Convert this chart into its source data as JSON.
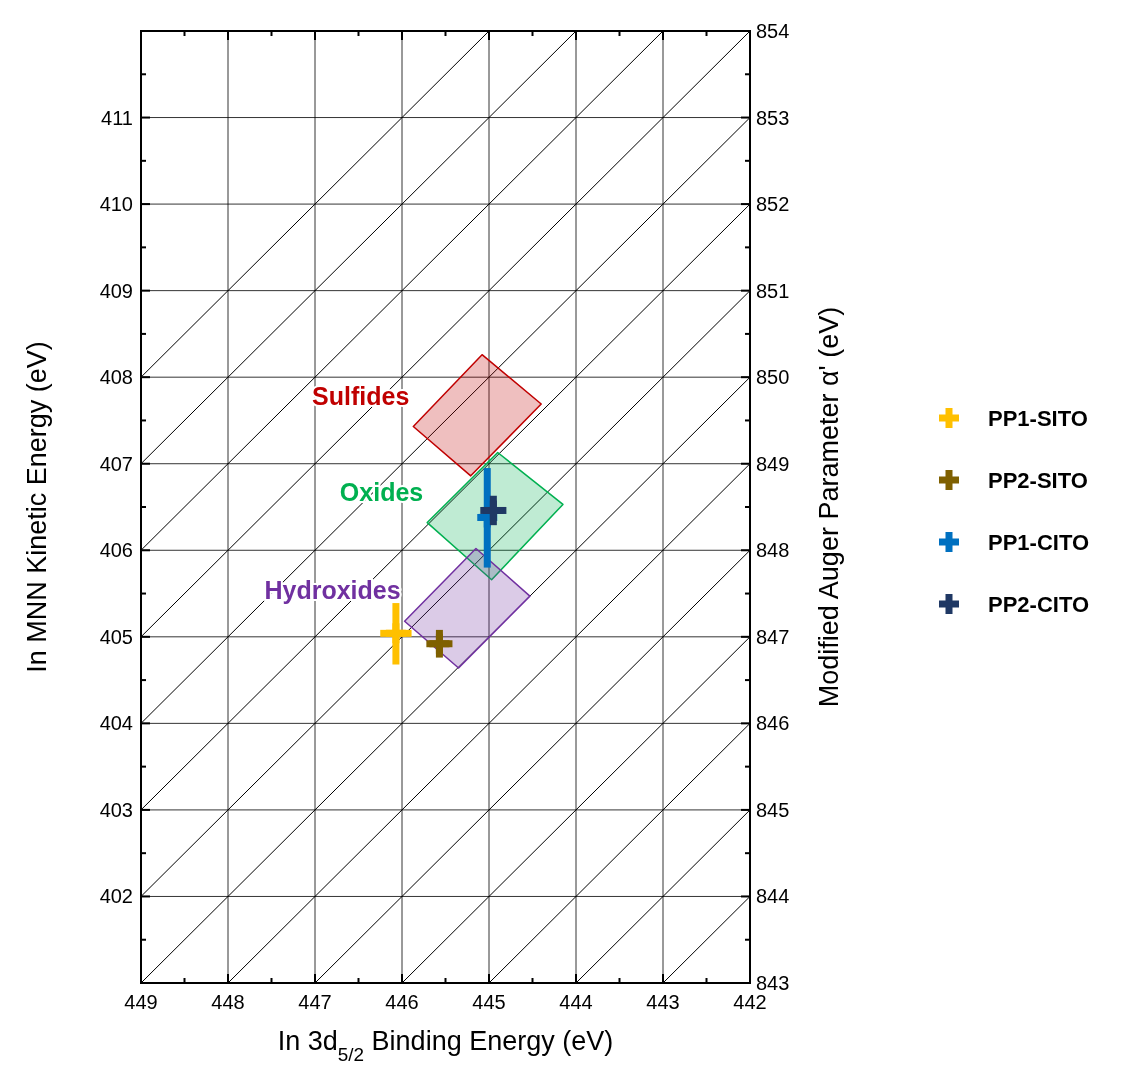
{
  "chart_data": {
    "type": "scatter",
    "xlabel": "In 3d$_{5/2}$ Binding Energy (eV)",
    "ylabel": "In MNN Kinetic Energy (eV)",
    "y2label": "Modified Auger Parameter α' (eV)",
    "xlim": [
      449,
      442
    ],
    "ylim": [
      401,
      412
    ],
    "y2lim": [
      843,
      854
    ],
    "xticks": [
      449,
      {
        "value": 448.5,
        "label": null
      },
      448,
      {
        "value": 447.5,
        "label": null
      },
      447,
      {
        "value": 446.5,
        "label": null
      },
      446,
      {
        "value": 445.5,
        "label": null
      },
      445,
      {
        "value": 444.5,
        "label": null
      },
      444,
      {
        "value": 443.5,
        "label": null
      },
      443,
      {
        "value": 442.5,
        "label": null
      },
      442
    ],
    "yticks": [
      {
        "value": 401,
        "label": null
      },
      {
        "value": 401.5,
        "label": null
      },
      402,
      {
        "value": 402.5,
        "label": null
      },
      403,
      {
        "value": 403.5,
        "label": null
      },
      404,
      {
        "value": 404.5,
        "label": null
      },
      405,
      {
        "value": 405.5,
        "label": null
      },
      406,
      {
        "value": 406.5,
        "label": null
      },
      407,
      {
        "value": 407.5,
        "label": null
      },
      408,
      {
        "value": 408.5,
        "label": null
      },
      409,
      {
        "value": 409.5,
        "label": null
      },
      410,
      {
        "value": 410.5,
        "label": null
      },
      411,
      {
        "value": 411.5,
        "label": null
      },
      {
        "value": 412,
        "label": null
      }
    ],
    "y2ticks": [
      843,
      {
        "value": 843.5,
        "label": null
      },
      844,
      {
        "value": 844.5,
        "label": null
      },
      845,
      {
        "value": 845.5,
        "label": null
      },
      846,
      {
        "value": 846.5,
        "label": null
      },
      847,
      {
        "value": 847.5,
        "label": null
      },
      848,
      {
        "value": 848.5,
        "label": null
      },
      849,
      {
        "value": 849.5,
        "label": null
      },
      850,
      {
        "value": 850.5,
        "label": null
      },
      851,
      {
        "value": 851.5,
        "label": null
      },
      852,
      {
        "value": 852.5,
        "label": null
      },
      853,
      {
        "value": 853.5,
        "label": null
      },
      854
    ],
    "grid": true,
    "legend": "right",
    "series": [
      {
        "type": "line",
        "color": "#000000",
        "x": [
          443,
          442
        ],
        "values": [
          401,
          402
        ]
      },
      {
        "type": "line",
        "color": "#000000",
        "x": [
          444,
          442
        ],
        "values": [
          401,
          403
        ]
      },
      {
        "type": "line",
        "color": "#000000",
        "x": [
          445,
          442
        ],
        "values": [
          401,
          404
        ]
      },
      {
        "type": "line",
        "color": "#000000",
        "x": [
          446,
          442
        ],
        "values": [
          401,
          405
        ]
      },
      {
        "type": "line",
        "color": "#000000",
        "x": [
          447,
          442
        ],
        "values": [
          401,
          406
        ]
      },
      {
        "type": "line",
        "color": "#000000",
        "x": [
          448,
          442
        ],
        "values": [
          401,
          407
        ]
      },
      {
        "type": "line",
        "color": "#000000",
        "x": [
          449,
          442
        ],
        "values": [
          401,
          408
        ]
      },
      {
        "type": "line",
        "color": "#000000",
        "x": [
          449,
          442
        ],
        "values": [
          402,
          409
        ]
      },
      {
        "type": "line",
        "color": "#000000",
        "x": [
          449,
          442
        ],
        "values": [
          403,
          410
        ]
      },
      {
        "type": "line",
        "color": "#000000",
        "x": [
          449,
          442
        ],
        "values": [
          404,
          411
        ]
      },
      {
        "type": "line",
        "color": "#000000",
        "x": [
          449,
          442
        ],
        "values": [
          405,
          412
        ]
      },
      {
        "type": "line",
        "color": "#000000",
        "x": [
          449,
          443
        ],
        "values": [
          406,
          412
        ]
      },
      {
        "type": "line",
        "color": "#000000",
        "x": [
          449,
          444
        ],
        "values": [
          407,
          412
        ]
      },
      {
        "type": "line",
        "color": "#000000",
        "x": [
          449,
          445
        ],
        "values": [
          408,
          412
        ]
      },
      {
        "type": "area",
        "name": "Sulfides",
        "color": "#c00000",
        "x": [
          445.08,
          444.4,
          445.21,
          445.87
        ],
        "values": [
          408.26,
          407.69,
          406.86,
          407.43
        ]
      },
      {
        "type": "area",
        "name": "Oxides",
        "color": "#00b050",
        "x": [
          444.9,
          444.15,
          444.97,
          445.71
        ],
        "values": [
          407.13,
          406.53,
          405.66,
          406.32
        ]
      },
      {
        "type": "area",
        "name": "Hydroxides",
        "color": "#7030a0",
        "x": [
          445.15,
          444.53,
          445.35,
          445.97
        ],
        "values": [
          406.02,
          405.47,
          404.64,
          405.18
        ]
      },
      {
        "marker": "cross",
        "name": "PP1-SITO",
        "color": "#ffc000",
        "x": [
          446.07
        ],
        "values": [
          405.04
        ],
        "errors": [
          [
            404.68,
            405.39
          ]
        ],
        "xerrors": [
          0.18
        ]
      },
      {
        "marker": "cross",
        "name": "PP2-SITO",
        "color": "#7f6000",
        "x": [
          445.57
        ],
        "values": [
          404.92
        ],
        "errors": [
          0.16
        ],
        "xerrors": [
          0.15
        ]
      },
      {
        "marker": "cross",
        "name": "PP1-CITO",
        "color": "#0070c0",
        "x": [
          445.02
        ],
        "values": [
          406.38
        ],
        "errors": [
          [
            405.8,
            406.95
          ]
        ],
        "xerrors": [
          0.1
        ]
      },
      {
        "marker": "cross",
        "name": "PP2-CITO",
        "color": "#1f3864",
        "x": [
          444.95
        ],
        "values": [
          406.46
        ],
        "errors": [
          0.17
        ],
        "xerrors": [
          0.15
        ]
      }
    ]
  }
}
